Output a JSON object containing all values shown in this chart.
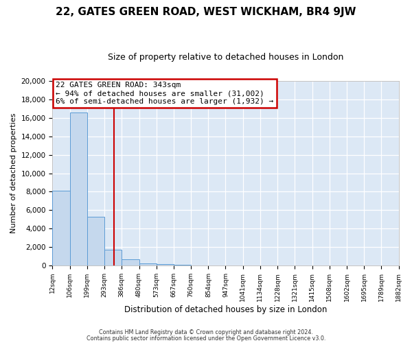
{
  "title": "22, GATES GREEN ROAD, WEST WICKHAM, BR4 9JW",
  "subtitle": "Size of property relative to detached houses in London",
  "xlabel": "Distribution of detached houses by size in London",
  "ylabel": "Number of detached properties",
  "bin_labels": [
    "12sqm",
    "106sqm",
    "199sqm",
    "293sqm",
    "386sqm",
    "480sqm",
    "573sqm",
    "667sqm",
    "760sqm",
    "854sqm",
    "947sqm",
    "1041sqm",
    "1134sqm",
    "1228sqm",
    "1321sqm",
    "1415sqm",
    "1508sqm",
    "1602sqm",
    "1695sqm",
    "1789sqm",
    "1882sqm"
  ],
  "bar_heights": [
    8100,
    16600,
    5300,
    1750,
    700,
    250,
    150,
    100,
    0,
    0,
    0,
    0,
    0,
    0,
    0,
    0,
    0,
    0,
    0,
    0
  ],
  "bar_color": "#c5d8ed",
  "bar_edge_color": "#5b9bd5",
  "property_line_x": 343,
  "property_line_color": "#cc0000",
  "annotation_title": "22 GATES GREEN ROAD: 343sqm",
  "annotation_line1": "← 94% of detached houses are smaller (31,002)",
  "annotation_line2": "6% of semi-detached houses are larger (1,932) →",
  "annotation_box_edge_color": "#cc0000",
  "ylim": [
    0,
    20000
  ],
  "yticks": [
    0,
    2000,
    4000,
    6000,
    8000,
    10000,
    12000,
    14000,
    16000,
    18000,
    20000
  ],
  "footer1": "Contains HM Land Registry data © Crown copyright and database right 2024.",
  "footer2": "Contains public sector information licensed under the Open Government Licence v3.0.",
  "fig_bg_color": "#ffffff",
  "plot_bg_color": "#dce8f5",
  "grid_color": "#ffffff",
  "title_fontsize": 11,
  "subtitle_fontsize": 9
}
